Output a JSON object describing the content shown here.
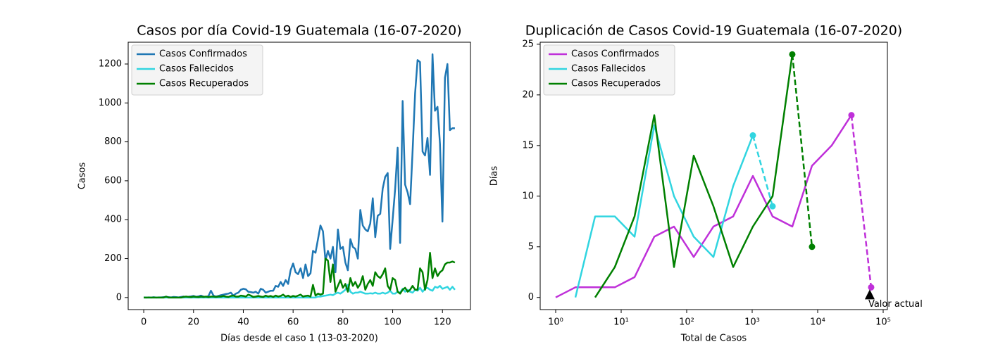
{
  "chart_data": [
    {
      "type": "line",
      "title": "Casos por día Covid-19 Guatemala (16-07-2020)",
      "xlabel": "Días desde el caso 1 (13-03-2020)",
      "ylabel": "Casos",
      "xscale": "linear",
      "legend": "upper left",
      "xlim": [
        -6.25,
        131.25
      ],
      "ylim": [
        -62,
        1312
      ],
      "xticks": [
        0,
        20,
        40,
        60,
        80,
        100,
        120
      ],
      "yticks": [
        0,
        200,
        400,
        600,
        800,
        1000,
        1200
      ],
      "x": [
        0,
        1,
        2,
        3,
        4,
        5,
        6,
        7,
        8,
        9,
        10,
        11,
        12,
        13,
        14,
        15,
        16,
        17,
        18,
        19,
        20,
        21,
        22,
        23,
        24,
        25,
        26,
        27,
        28,
        29,
        30,
        31,
        32,
        33,
        34,
        35,
        36,
        37,
        38,
        39,
        40,
        41,
        42,
        43,
        44,
        45,
        46,
        47,
        48,
        49,
        50,
        51,
        52,
        53,
        54,
        55,
        56,
        57,
        58,
        59,
        60,
        61,
        62,
        63,
        64,
        65,
        66,
        67,
        68,
        69,
        70,
        71,
        72,
        73,
        74,
        75,
        76,
        77,
        78,
        79,
        80,
        81,
        82,
        83,
        84,
        85,
        86,
        87,
        88,
        89,
        90,
        91,
        92,
        93,
        94,
        95,
        96,
        97,
        98,
        99,
        100,
        101,
        102,
        103,
        104,
        105,
        106,
        107,
        108,
        109,
        110,
        111,
        112,
        113,
        114,
        115,
        116,
        117,
        118,
        119,
        120,
        121,
        122,
        123,
        124,
        125
      ],
      "series": [
        {
          "name": "Casos Confirmados",
          "color": "#1f77b4",
          "values": [
            1,
            0,
            1,
            0,
            2,
            0,
            1,
            1,
            2,
            3,
            2,
            1,
            3,
            2,
            1,
            3,
            5,
            2,
            4,
            6,
            8,
            4,
            6,
            10,
            5,
            3,
            8,
            35,
            10,
            5,
            8,
            12,
            15,
            18,
            20,
            25,
            10,
            20,
            25,
            40,
            45,
            42,
            30,
            28,
            25,
            30,
            20,
            45,
            40,
            25,
            30,
            35,
            35,
            60,
            55,
            80,
            60,
            90,
            70,
            140,
            175,
            130,
            120,
            150,
            100,
            170,
            110,
            125,
            240,
            230,
            300,
            370,
            340,
            190,
            240,
            200,
            260,
            130,
            350,
            250,
            260,
            180,
            140,
            300,
            260,
            250,
            200,
            450,
            370,
            350,
            340,
            380,
            510,
            310,
            420,
            430,
            560,
            620,
            640,
            250,
            400,
            560,
            770,
            280,
            1010,
            580,
            540,
            480,
            750,
            1050,
            1220,
            1210,
            750,
            730,
            820,
            630,
            1250,
            960,
            980,
            790,
            390,
            1130,
            1200,
            860,
            870,
            870
          ]
        },
        {
          "name": "Casos Fallecidos",
          "color": "#31d5e0",
          "values": [
            0,
            0,
            0,
            0,
            0,
            0,
            0,
            0,
            0,
            0,
            0,
            0,
            0,
            0,
            0,
            0,
            0,
            0,
            0,
            0,
            0,
            0,
            0,
            0,
            0,
            0,
            0,
            0,
            0,
            0,
            0,
            0,
            0,
            0,
            0,
            0,
            0,
            0,
            0,
            0,
            0,
            0,
            0,
            0,
            0,
            0,
            0,
            0,
            0,
            0,
            0,
            0,
            0,
            0,
            0,
            0,
            0,
            0,
            0,
            0,
            0,
            0,
            0,
            0,
            0,
            0,
            0,
            0,
            0,
            0,
            5,
            5,
            8,
            10,
            12,
            15,
            12,
            20,
            25,
            20,
            30,
            40,
            65,
            30,
            20,
            25,
            25,
            30,
            25,
            20,
            20,
            22,
            20,
            25,
            20,
            20,
            25,
            20,
            25,
            35,
            20,
            20,
            30,
            25,
            45,
            30,
            40,
            30,
            25,
            40,
            35,
            50,
            30,
            45,
            50,
            40,
            35,
            55,
            50,
            60,
            45,
            50,
            55,
            40,
            55,
            40
          ]
        },
        {
          "name": "Casos Recuperados",
          "color": "#008000",
          "values": [
            0,
            0,
            0,
            0,
            0,
            0,
            0,
            0,
            0,
            5,
            0,
            0,
            0,
            0,
            0,
            0,
            3,
            5,
            3,
            2,
            5,
            3,
            2,
            5,
            3,
            5,
            2,
            5,
            5,
            3,
            5,
            5,
            8,
            5,
            3,
            8,
            10,
            5,
            5,
            10,
            8,
            5,
            15,
            10,
            3,
            5,
            8,
            5,
            3,
            10,
            5,
            8,
            3,
            10,
            5,
            8,
            15,
            5,
            10,
            3,
            8,
            5,
            10,
            15,
            5,
            8,
            10,
            5,
            65,
            10,
            20,
            15,
            20,
            200,
            190,
            80,
            170,
            30,
            60,
            90,
            50,
            70,
            30,
            100,
            60,
            80,
            50,
            70,
            110,
            40,
            70,
            90,
            60,
            130,
            110,
            100,
            120,
            150,
            60,
            40,
            100,
            90,
            30,
            20,
            40,
            50,
            30,
            40,
            60,
            40,
            40,
            150,
            130,
            40,
            90,
            230,
            100,
            150,
            110,
            130,
            140,
            170,
            180,
            180,
            185,
            180
          ]
        }
      ]
    },
    {
      "type": "line",
      "title": "Duplicación de Casos Covid-19 Guatemala (16-07-2020)",
      "xlabel": "Total de Casos",
      "ylabel": "Días",
      "xscale": "log",
      "legend": "upper left",
      "xlim": [
        0.58,
        116000
      ],
      "ylim": [
        -1.2,
        25.2
      ],
      "xticks": [
        {
          "value": 1,
          "label": "10⁰"
        },
        {
          "value": 10,
          "label": "10¹"
        },
        {
          "value": 100,
          "label": "10²"
        },
        {
          "value": 1000,
          "label": "10³"
        },
        {
          "value": 10000,
          "label": "10⁴"
        },
        {
          "value": 100000,
          "label": "10⁵"
        }
      ],
      "yticks": [
        0,
        5,
        10,
        15,
        20,
        25
      ],
      "annotation": {
        "text": "Valor actual"
      },
      "series": [
        {
          "name": "Casos Confirmados",
          "color": "#bf30d9",
          "dashed_from": 15,
          "x": [
            1,
            2,
            4,
            8,
            16,
            32,
            64,
            128,
            256,
            512,
            1024,
            2048,
            4096,
            8192,
            16384,
            32768,
            65536
          ],
          "values": [
            0,
            1,
            1,
            1,
            2,
            6,
            7,
            4,
            7,
            8,
            12,
            8,
            7,
            13,
            15,
            18,
            1
          ]
        },
        {
          "name": "Casos Fallecidos",
          "color": "#31d5e0",
          "dashed_from": 9,
          "x": [
            2,
            4,
            8,
            16,
            32,
            64,
            128,
            256,
            512,
            1024,
            2048
          ],
          "values": [
            0,
            8,
            8,
            6,
            17,
            10,
            6,
            4,
            11,
            16,
            9
          ]
        },
        {
          "name": "Casos Recuperados",
          "color": "#008000",
          "dashed_from": 10,
          "x": [
            4,
            8,
            16,
            32,
            64,
            128,
            256,
            512,
            1024,
            2048,
            4096,
            8192
          ],
          "values": [
            0,
            3,
            8,
            18,
            3,
            14,
            9,
            3,
            7,
            10,
            24,
            5
          ]
        }
      ]
    }
  ]
}
